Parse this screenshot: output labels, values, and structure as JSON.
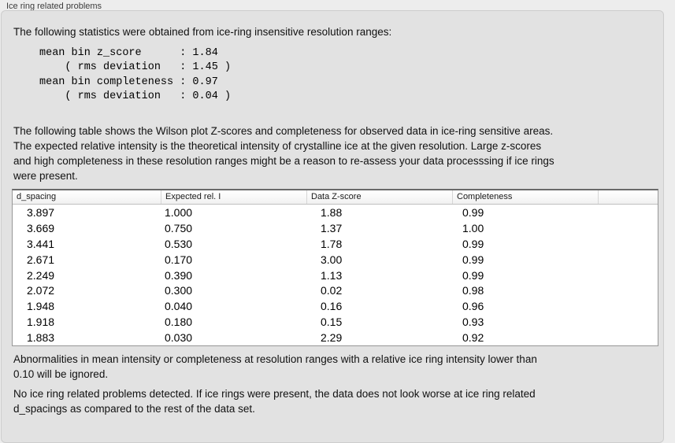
{
  "title": "Ice ring related problems",
  "colors": {
    "page_bg": "#ededed",
    "panel_bg": "#e2e2e2",
    "table_bg": "#ffffff"
  },
  "intro": "The following statistics were obtained from ice-ring insensitive resolution ranges:",
  "stats_block": "mean bin z_score      : 1.84\n    ( rms deviation   : 1.45 )\nmean bin completeness : 0.97\n    ( rms deviation   : 0.04 )",
  "table_description": "The following table shows the Wilson plot Z-scores and completeness for observed data in ice-ring sensitive areas.\nThe expected relative intensity is the theoretical intensity of crystalline ice at the given resolution. Large z-scores\nand high completeness in these resolution ranges might be a reason to re-assess your data processsing if ice rings\nwere present.",
  "table": {
    "headers": [
      "d_spacing",
      "Expected rel. I",
      "Data Z-score",
      "Completeness",
      ""
    ],
    "rows": [
      [
        "3.897",
        "1.000",
        "1.88",
        "0.99"
      ],
      [
        "3.669",
        "0.750",
        "1.37",
        "1.00"
      ],
      [
        "3.441",
        "0.530",
        "1.78",
        "0.99"
      ],
      [
        "2.671",
        "0.170",
        "3.00",
        "0.99"
      ],
      [
        "2.249",
        "0.390",
        "1.13",
        "0.99"
      ],
      [
        "2.072",
        "0.300",
        "0.02",
        "0.98"
      ],
      [
        "1.948",
        "0.040",
        "0.16",
        "0.96"
      ],
      [
        "1.918",
        "0.180",
        "0.15",
        "0.93"
      ],
      [
        "1.883",
        "0.030",
        "2.29",
        "0.92"
      ]
    ]
  },
  "note_ignore": "Abnormalities in mean intensity or completeness at resolution ranges with a relative ice ring intensity lower than\n0.10 will be ignored.",
  "conclusion": "No ice ring related problems detected. If ice rings were present, the data does not look worse at ice ring related\nd_spacings as compared to the rest of the data set."
}
